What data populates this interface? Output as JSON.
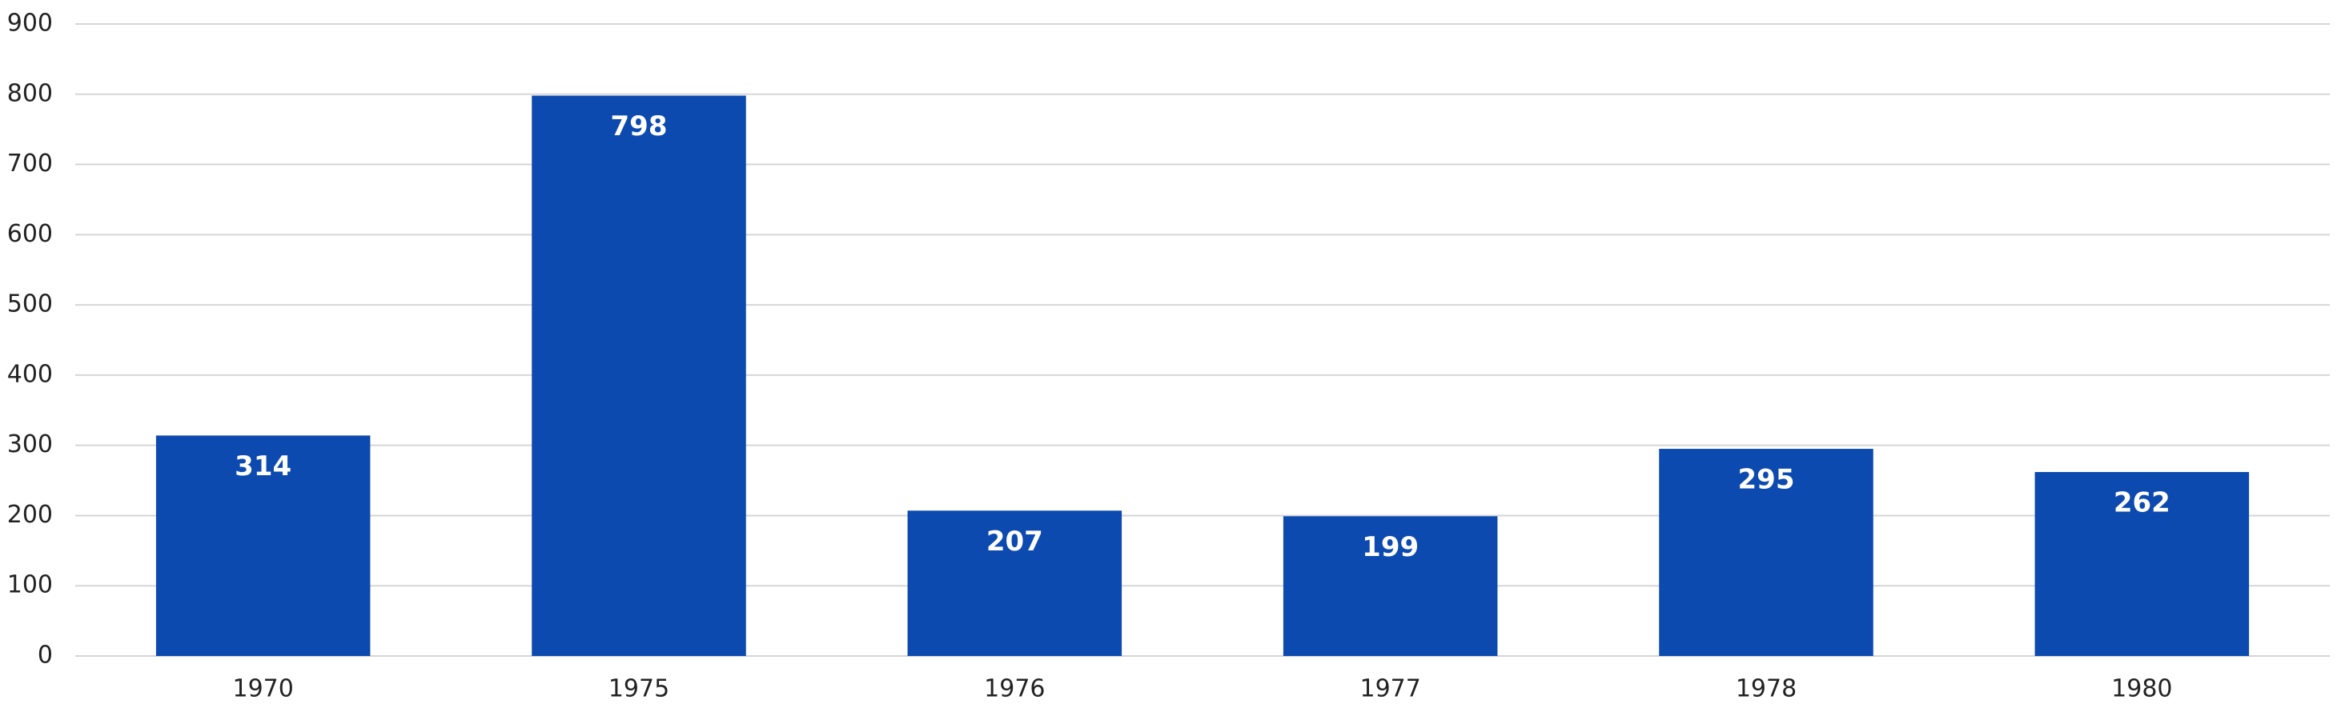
{
  "chart_data": {
    "type": "bar",
    "categories": [
      "1970",
      "1975",
      "1976",
      "1977",
      "1978",
      "1980"
    ],
    "values": [
      314,
      798,
      207,
      199,
      295,
      262
    ],
    "color": "#0d4aaf",
    "ylim": [
      0,
      900
    ],
    "yticks": [
      0,
      100,
      200,
      300,
      400,
      500,
      600,
      700,
      800,
      900
    ],
    "grid": true
  }
}
